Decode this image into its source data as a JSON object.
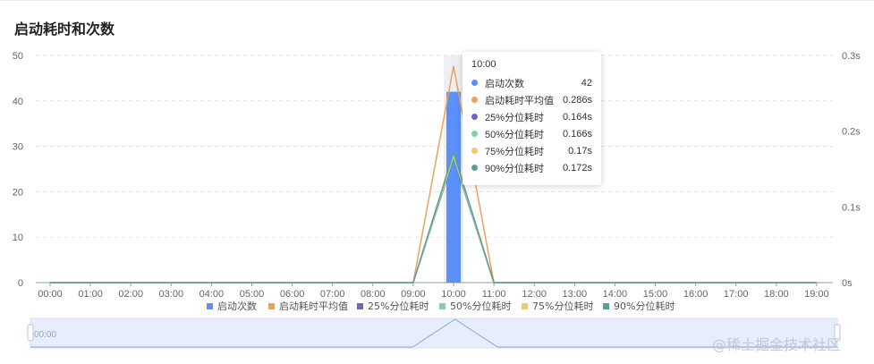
{
  "title": "启动耗时和次数",
  "colors": {
    "count": "#5b8ff9",
    "avg": "#e8a45c",
    "p25": "#7262c4",
    "p50": "#7fd3a5",
    "p75": "#f5c86a",
    "p90": "#5a9f95"
  },
  "chart_data": {
    "type": "bar+line",
    "categories": [
      "00:00",
      "01:00",
      "02:00",
      "03:00",
      "04:00",
      "05:00",
      "06:00",
      "07:00",
      "08:00",
      "09:00",
      "10:00",
      "11:00",
      "12:00",
      "13:00",
      "14:00",
      "15:00",
      "16:00",
      "17:00",
      "18:00",
      "19:00"
    ],
    "left_axis": {
      "ticks": [
        "0",
        "10",
        "20",
        "30",
        "40",
        "50"
      ],
      "ylim": [
        0,
        50
      ]
    },
    "right_axis": {
      "ticks": [
        "0s",
        "0.1s",
        "0.2s",
        "0.3s"
      ],
      "ylim": [
        0,
        0.3
      ]
    },
    "series": [
      {
        "name": "启动次数",
        "type": "bar",
        "axis": "left",
        "values": [
          0,
          0,
          0,
          0,
          0,
          0,
          0,
          0,
          0,
          0,
          42,
          0,
          0,
          0,
          0,
          0,
          0,
          0,
          0,
          0
        ]
      },
      {
        "name": "启动耗时平均值",
        "type": "line",
        "axis": "right",
        "values": [
          0,
          0,
          0,
          0,
          0,
          0,
          0,
          0,
          0,
          0,
          0.286,
          0,
          0,
          0,
          0,
          0,
          0,
          0,
          0,
          0
        ]
      },
      {
        "name": "25%分位耗时",
        "type": "line",
        "axis": "right",
        "values": [
          0,
          0,
          0,
          0,
          0,
          0,
          0,
          0,
          0,
          0,
          0.164,
          0,
          0,
          0,
          0,
          0,
          0,
          0,
          0,
          0
        ]
      },
      {
        "name": "50%分位耗时",
        "type": "line",
        "axis": "right",
        "values": [
          0,
          0,
          0,
          0,
          0,
          0,
          0,
          0,
          0,
          0,
          0.166,
          0,
          0,
          0,
          0,
          0,
          0,
          0,
          0,
          0
        ]
      },
      {
        "name": "75%分位耗时",
        "type": "line",
        "axis": "right",
        "values": [
          0,
          0,
          0,
          0,
          0,
          0,
          0,
          0,
          0,
          0,
          0.17,
          0,
          0,
          0,
          0,
          0,
          0,
          0,
          0,
          0
        ]
      },
      {
        "name": "90%分位耗时",
        "type": "line",
        "axis": "right",
        "values": [
          0,
          0,
          0,
          0,
          0,
          0,
          0,
          0,
          0,
          0,
          0.172,
          0,
          0,
          0,
          0,
          0,
          0,
          0,
          0,
          0
        ]
      }
    ],
    "grid": true,
    "legend": "bottom"
  },
  "tooltip": {
    "time": "10:00",
    "rows": [
      {
        "name": "启动次数",
        "value": "42"
      },
      {
        "name": "启动耗时平均值",
        "value": "0.286s"
      },
      {
        "name": "25%分位耗时",
        "value": "0.164s"
      },
      {
        "name": "50%分位耗时",
        "value": "0.166s"
      },
      {
        "name": "75%分位耗时",
        "value": "0.17s"
      },
      {
        "name": "90%分位耗时",
        "value": "0.172s"
      }
    ]
  },
  "slider": {
    "start_label": "00:00"
  },
  "watermark": "@稀土掘金技术社区"
}
